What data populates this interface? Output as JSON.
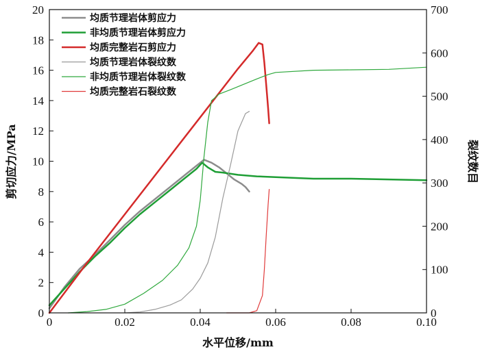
{
  "chart_data": {
    "type": "line",
    "xlabel": "水平位移/mm",
    "ylabel_left": "剪切应力/MPa",
    "ylabel_right": "裂纹数目",
    "xlim": [
      0,
      0.1
    ],
    "ylim_left": [
      0,
      20
    ],
    "ylim_right": [
      0,
      700
    ],
    "x_ticks": [
      "0",
      "0.02",
      "0.04",
      "0.06",
      "0.08",
      "0.10"
    ],
    "y_left_ticks": [
      "0",
      "2",
      "4",
      "6",
      "8",
      "10",
      "12",
      "14",
      "16",
      "18",
      "20"
    ],
    "y_right_ticks": [
      "0",
      "100",
      "200",
      "300",
      "400",
      "500",
      "600",
      "700"
    ],
    "legend_position": "top-left",
    "series": [
      {
        "name": "均质节理岩体剪应力",
        "axis": "left",
        "color": "#8c8c8c",
        "width": 2.5,
        "points": [
          [
            0,
            0.3
          ],
          [
            0.004,
            1.7
          ],
          [
            0.008,
            2.9
          ],
          [
            0.012,
            3.8
          ],
          [
            0.016,
            4.8
          ],
          [
            0.02,
            5.8
          ],
          [
            0.024,
            6.7
          ],
          [
            0.028,
            7.5
          ],
          [
            0.032,
            8.3
          ],
          [
            0.036,
            9.1
          ],
          [
            0.039,
            9.7
          ],
          [
            0.041,
            10.1
          ],
          [
            0.043,
            9.9
          ],
          [
            0.045,
            9.6
          ],
          [
            0.047,
            9.2
          ],
          [
            0.049,
            8.8
          ],
          [
            0.051,
            8.5
          ],
          [
            0.052,
            8.3
          ],
          [
            0.053,
            8.0
          ]
        ]
      },
      {
        "name": "非均质节理岩体剪应力",
        "axis": "left",
        "color": "#1e9e35",
        "width": 2.5,
        "points": [
          [
            0,
            0.5
          ],
          [
            0.004,
            1.6
          ],
          [
            0.008,
            2.7
          ],
          [
            0.012,
            3.7
          ],
          [
            0.016,
            4.6
          ],
          [
            0.02,
            5.6
          ],
          [
            0.024,
            6.5
          ],
          [
            0.028,
            7.3
          ],
          [
            0.032,
            8.1
          ],
          [
            0.036,
            8.9
          ],
          [
            0.039,
            9.5
          ],
          [
            0.0405,
            9.9
          ],
          [
            0.042,
            9.6
          ],
          [
            0.044,
            9.3
          ],
          [
            0.046,
            9.25
          ],
          [
            0.05,
            9.1
          ],
          [
            0.055,
            9.0
          ],
          [
            0.06,
            8.95
          ],
          [
            0.07,
            8.85
          ],
          [
            0.08,
            8.85
          ],
          [
            0.09,
            8.8
          ],
          [
            0.1,
            8.75
          ]
        ]
      },
      {
        "name": "均质完整岩石剪应力",
        "axis": "left",
        "color": "#d42a2a",
        "width": 2.5,
        "points": [
          [
            0,
            0.0
          ],
          [
            0.01,
            3.3
          ],
          [
            0.02,
            6.5
          ],
          [
            0.03,
            9.7
          ],
          [
            0.04,
            12.9
          ],
          [
            0.05,
            16.1
          ],
          [
            0.054,
            17.3
          ],
          [
            0.0555,
            17.8
          ],
          [
            0.0565,
            17.7
          ],
          [
            0.057,
            16.5
          ],
          [
            0.0575,
            15.0
          ],
          [
            0.058,
            13.5
          ],
          [
            0.0583,
            12.5
          ]
        ]
      },
      {
        "name": "均质节理岩体裂纹数",
        "axis": "right",
        "color": "#9a9a9a",
        "width": 1.2,
        "points": [
          [
            0.02,
            0
          ],
          [
            0.024,
            2
          ],
          [
            0.028,
            8
          ],
          [
            0.032,
            18
          ],
          [
            0.035,
            30
          ],
          [
            0.038,
            55
          ],
          [
            0.04,
            80
          ],
          [
            0.042,
            115
          ],
          [
            0.044,
            175
          ],
          [
            0.046,
            265
          ],
          [
            0.048,
            340
          ],
          [
            0.049,
            380
          ],
          [
            0.05,
            420
          ],
          [
            0.051,
            440
          ],
          [
            0.052,
            460
          ],
          [
            0.053,
            465
          ]
        ]
      },
      {
        "name": "非均质节理岩体裂纹数",
        "axis": "right",
        "color": "#2ea83c",
        "width": 1.2,
        "points": [
          [
            0.005,
            0
          ],
          [
            0.01,
            3
          ],
          [
            0.015,
            8
          ],
          [
            0.02,
            20
          ],
          [
            0.025,
            45
          ],
          [
            0.03,
            75
          ],
          [
            0.034,
            110
          ],
          [
            0.037,
            150
          ],
          [
            0.039,
            200
          ],
          [
            0.04,
            260
          ],
          [
            0.041,
            360
          ],
          [
            0.042,
            440
          ],
          [
            0.043,
            490
          ],
          [
            0.045,
            505
          ],
          [
            0.048,
            515
          ],
          [
            0.05,
            522
          ],
          [
            0.055,
            540
          ],
          [
            0.058,
            550
          ],
          [
            0.06,
            555
          ],
          [
            0.07,
            560
          ],
          [
            0.08,
            561
          ],
          [
            0.09,
            562
          ],
          [
            0.1,
            567
          ]
        ]
      },
      {
        "name": "均质完整岩石裂纹数",
        "axis": "right",
        "color": "#e03a3a",
        "width": 1.2,
        "points": [
          [
            0.047,
            0
          ],
          [
            0.053,
            0
          ],
          [
            0.055,
            5
          ],
          [
            0.0565,
            40
          ],
          [
            0.057,
            100
          ],
          [
            0.0575,
            180
          ],
          [
            0.058,
            250
          ],
          [
            0.0583,
            285
          ]
        ]
      }
    ]
  }
}
